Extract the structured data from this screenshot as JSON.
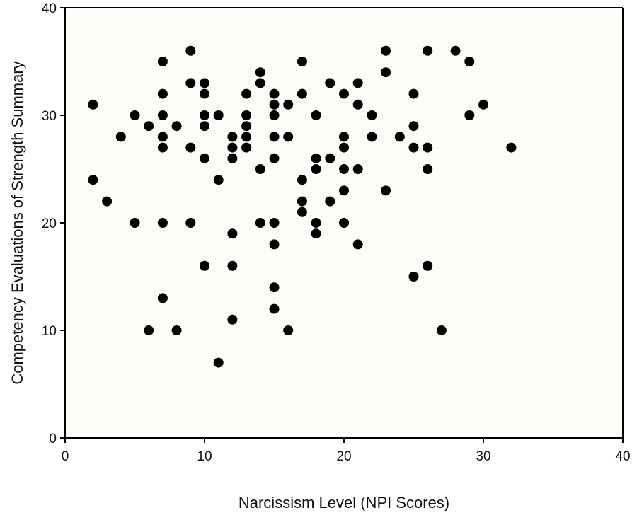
{
  "chart_data": {
    "type": "scatter",
    "title": "",
    "xlabel": "Narcissism Level (NPI Scores)",
    "ylabel": "Competency Evaluations of Strength Summary",
    "xlim": [
      0,
      40
    ],
    "ylim": [
      0,
      40
    ],
    "xticks": [
      0,
      10,
      20,
      30,
      40
    ],
    "yticks": [
      0,
      10,
      20,
      30,
      40
    ],
    "grid": false,
    "legend": "none",
    "point_color": "#000000",
    "background": "#fcfcf8",
    "points": [
      [
        2,
        31
      ],
      [
        2,
        24
      ],
      [
        3,
        22
      ],
      [
        4,
        28
      ],
      [
        5,
        30
      ],
      [
        5,
        20
      ],
      [
        6,
        29
      ],
      [
        6,
        10
      ],
      [
        7,
        35
      ],
      [
        7,
        32
      ],
      [
        7,
        30
      ],
      [
        7,
        28
      ],
      [
        7,
        27
      ],
      [
        7,
        20
      ],
      [
        7,
        13
      ],
      [
        8,
        29
      ],
      [
        8,
        10
      ],
      [
        9,
        36
      ],
      [
        9,
        33
      ],
      [
        9,
        27
      ],
      [
        9,
        20
      ],
      [
        10,
        33
      ],
      [
        10,
        32
      ],
      [
        10,
        30
      ],
      [
        10,
        29
      ],
      [
        10,
        26
      ],
      [
        10,
        16
      ],
      [
        11,
        30
      ],
      [
        11,
        24
      ],
      [
        11,
        7
      ],
      [
        12,
        28
      ],
      [
        12,
        27
      ],
      [
        12,
        26
      ],
      [
        12,
        19
      ],
      [
        12,
        16
      ],
      [
        12,
        11
      ],
      [
        13,
        32
      ],
      [
        13,
        30
      ],
      [
        13,
        29
      ],
      [
        13,
        28
      ],
      [
        13,
        27
      ],
      [
        14,
        34
      ],
      [
        14,
        33
      ],
      [
        14,
        25
      ],
      [
        14,
        20
      ],
      [
        15,
        32
      ],
      [
        15,
        31
      ],
      [
        15,
        30
      ],
      [
        15,
        28
      ],
      [
        15,
        26
      ],
      [
        15,
        20
      ],
      [
        15,
        18
      ],
      [
        15,
        14
      ],
      [
        15,
        12
      ],
      [
        16,
        31
      ],
      [
        16,
        28
      ],
      [
        16,
        10
      ],
      [
        17,
        35
      ],
      [
        17,
        32
      ],
      [
        17,
        24
      ],
      [
        17,
        22
      ],
      [
        17,
        21
      ],
      [
        18,
        30
      ],
      [
        18,
        26
      ],
      [
        18,
        25
      ],
      [
        18,
        20
      ],
      [
        18,
        19
      ],
      [
        19,
        33
      ],
      [
        19,
        26
      ],
      [
        19,
        22
      ],
      [
        20,
        32
      ],
      [
        20,
        28
      ],
      [
        20,
        27
      ],
      [
        20,
        25
      ],
      [
        20,
        23
      ],
      [
        20,
        20
      ],
      [
        21,
        33
      ],
      [
        21,
        31
      ],
      [
        21,
        25
      ],
      [
        21,
        18
      ],
      [
        22,
        30
      ],
      [
        22,
        28
      ],
      [
        23,
        36
      ],
      [
        23,
        34
      ],
      [
        23,
        23
      ],
      [
        24,
        28
      ],
      [
        25,
        32
      ],
      [
        25,
        29
      ],
      [
        25,
        27
      ],
      [
        25,
        15
      ],
      [
        26,
        36
      ],
      [
        26,
        27
      ],
      [
        26,
        25
      ],
      [
        26,
        16
      ],
      [
        27,
        10
      ],
      [
        28,
        36
      ],
      [
        29,
        35
      ],
      [
        29,
        30
      ],
      [
        30,
        31
      ],
      [
        32,
        27
      ]
    ]
  }
}
